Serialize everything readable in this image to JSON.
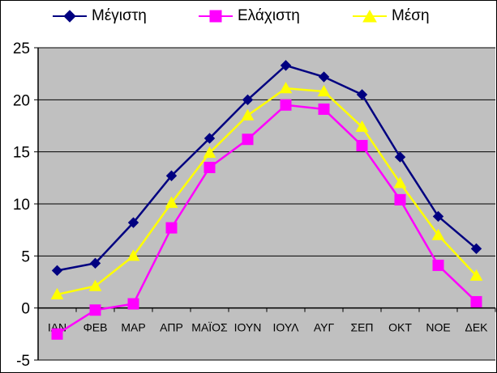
{
  "chart_data": {
    "type": "line",
    "title": "",
    "xlabel": "",
    "ylabel": "",
    "categories": [
      "ΙΑΝ",
      "ΦΕΒ",
      "ΜΑΡ",
      "ΑΠΡ",
      "ΜΑΪΟΣ",
      "ΙΟΥΝ",
      "ΙΟΥΛ",
      "ΑΥΓ",
      "ΣΕΠ",
      "ΟΚΤ",
      "ΝΟΕ",
      "ΔΕΚ"
    ],
    "ylim": [
      -5,
      25
    ],
    "yticks": [
      "-5",
      "0",
      "5",
      "10",
      "15",
      "20",
      "25"
    ],
    "grid": true,
    "legend_position": "top",
    "plot_background": "#c0c0c0",
    "series": [
      {
        "name": "Μέγιστη",
        "color": "#000080",
        "marker": "diamond",
        "values": [
          3.6,
          4.3,
          8.2,
          12.7,
          16.3,
          20.0,
          23.3,
          22.2,
          20.5,
          14.5,
          8.8,
          5.7
        ]
      },
      {
        "name": "Ελάχιστη",
        "color": "#ff00ff",
        "marker": "square",
        "values": [
          -2.5,
          -0.2,
          0.4,
          7.7,
          13.5,
          16.2,
          19.5,
          19.1,
          15.6,
          10.4,
          4.1,
          0.6
        ]
      },
      {
        "name": "Μέση",
        "color": "#ffff00",
        "marker": "triangle",
        "values": [
          1.3,
          2.1,
          5.0,
          10.1,
          14.9,
          18.5,
          21.1,
          20.8,
          17.4,
          12.0,
          7.0,
          3.1
        ]
      }
    ]
  }
}
